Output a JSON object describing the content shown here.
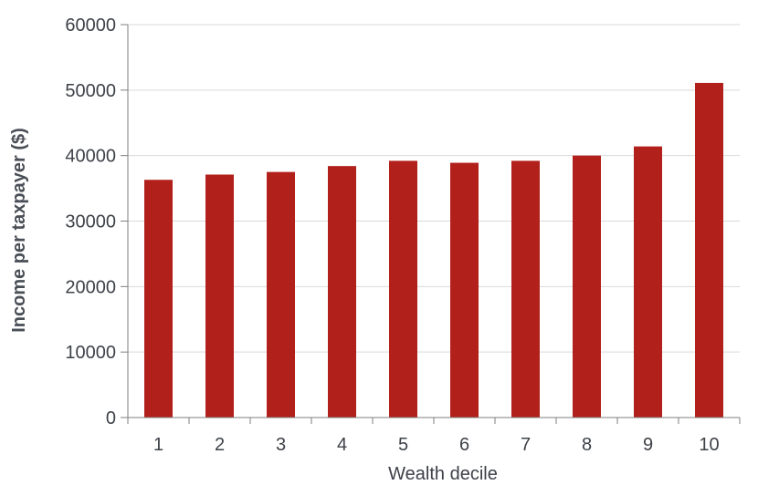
{
  "chart_data": {
    "type": "bar",
    "categories": [
      "1",
      "2",
      "3",
      "4",
      "5",
      "6",
      "7",
      "8",
      "9",
      "10"
    ],
    "values": [
      36300,
      37100,
      37500,
      38400,
      39200,
      38900,
      39200,
      40000,
      41400,
      51100
    ],
    "title": "",
    "xlabel": "Wealth decile",
    "ylabel": "Income per taxpayer ($)",
    "ylim": [
      0,
      60000
    ],
    "yticks": [
      "0",
      "10000",
      "20000",
      "30000",
      "40000",
      "50000",
      "60000"
    ],
    "grid": true,
    "legend": "none",
    "colors": {
      "bar": "#b2201b",
      "grid": "#d9d9d9",
      "axis": "#7f7f7f",
      "text": "#3d4148"
    }
  }
}
